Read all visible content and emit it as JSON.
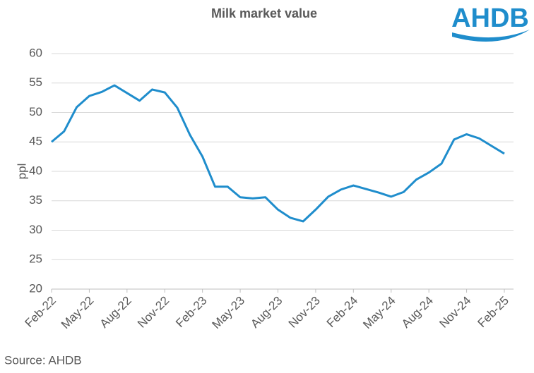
{
  "chart_data": {
    "type": "line",
    "title": "Milk market value",
    "y_label": "ppl",
    "source": "Source: AHDB",
    "logo": "AHDB",
    "categories": [
      "Feb-22",
      null,
      null,
      "May-22",
      null,
      null,
      "Aug-22",
      null,
      null,
      "Nov-22",
      null,
      null,
      "Feb-23",
      null,
      null,
      "May-23",
      null,
      null,
      "Aug-23",
      null,
      null,
      "Nov-23",
      null,
      null,
      "Feb-24",
      null,
      null,
      "May-24",
      null,
      null,
      "Aug-24",
      null,
      null,
      "Nov-24",
      null,
      null,
      "Feb-25"
    ],
    "series": [
      {
        "name": "Milk market value",
        "color": "#1f8dcc",
        "values": [
          45.0,
          46.8,
          50.9,
          52.8,
          53.5,
          54.6,
          53.3,
          52.0,
          53.9,
          53.4,
          50.8,
          46.2,
          42.5,
          37.4,
          37.4,
          35.6,
          35.4,
          35.6,
          33.5,
          32.1,
          31.5,
          33.5,
          35.7,
          36.9,
          37.6,
          37.0,
          36.4,
          35.7,
          36.5,
          38.6,
          39.8,
          41.3,
          45.4,
          46.3,
          45.6,
          44.3,
          43.0
        ]
      }
    ],
    "ylim": [
      20,
      60
    ],
    "yticks": [
      20,
      25,
      30,
      35,
      40,
      45,
      50,
      55,
      60
    ],
    "grid": true
  }
}
